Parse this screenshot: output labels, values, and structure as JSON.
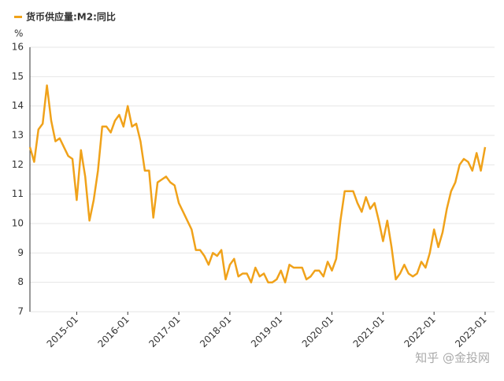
{
  "chart_data": {
    "type": "line",
    "y_label": "%",
    "watermark": "知乎 @金投网",
    "categories": [
      null,
      null,
      null,
      null,
      null,
      null,
      null,
      null,
      null,
      null,
      null,
      "2015-01",
      null,
      null,
      null,
      null,
      null,
      null,
      null,
      null,
      null,
      null,
      null,
      "2016-01",
      null,
      null,
      null,
      null,
      null,
      null,
      null,
      null,
      null,
      null,
      null,
      "2017-01",
      null,
      null,
      null,
      null,
      null,
      null,
      null,
      null,
      null,
      null,
      null,
      "2018-01",
      null,
      null,
      null,
      null,
      null,
      null,
      null,
      null,
      null,
      null,
      null,
      "2019-01",
      null,
      null,
      null,
      null,
      null,
      null,
      null,
      null,
      null,
      null,
      null,
      "2020-01",
      null,
      null,
      null,
      null,
      null,
      null,
      null,
      null,
      null,
      null,
      null,
      "2021-01",
      null,
      null,
      null,
      null,
      null,
      null,
      null,
      null,
      null,
      null,
      null,
      "2022-01",
      null,
      null,
      null,
      null,
      null,
      null,
      null,
      null,
      null,
      null,
      null,
      "2023-01"
    ],
    "series": [
      {
        "name": "货币供应量:M2:同比",
        "color": "#f0a21a",
        "values": [
          12.6,
          12.1,
          13.2,
          13.4,
          14.7,
          13.5,
          12.8,
          12.9,
          12.6,
          12.3,
          12.2,
          10.8,
          12.5,
          11.6,
          10.1,
          10.8,
          11.8,
          13.3,
          13.3,
          13.1,
          13.5,
          13.7,
          13.3,
          14.0,
          13.3,
          13.4,
          12.8,
          11.8,
          11.8,
          10.2,
          11.4,
          11.5,
          11.6,
          11.4,
          11.3,
          10.7,
          10.4,
          10.1,
          9.8,
          9.1,
          9.1,
          8.9,
          8.6,
          9.0,
          8.9,
          9.1,
          8.1,
          8.6,
          8.8,
          8.2,
          8.3,
          8.3,
          8.0,
          8.5,
          8.2,
          8.3,
          8.0,
          8.0,
          8.1,
          8.4,
          8.0,
          8.6,
          8.5,
          8.5,
          8.5,
          8.1,
          8.2,
          8.4,
          8.4,
          8.2,
          8.7,
          8.4,
          8.8,
          10.1,
          11.1,
          11.1,
          11.1,
          10.7,
          10.4,
          10.9,
          10.5,
          10.7,
          10.1,
          9.4,
          10.1,
          9.2,
          8.1,
          8.3,
          8.6,
          8.3,
          8.2,
          8.3,
          8.7,
          8.5,
          9.0,
          9.8,
          9.2,
          9.7,
          10.5,
          11.1,
          11.4,
          12.0,
          12.2,
          12.1,
          11.8,
          12.4,
          11.8,
          12.6
        ]
      }
    ],
    "ylim": [
      7,
      16
    ],
    "yticks": [
      7,
      8,
      9,
      10,
      11,
      12,
      13,
      14,
      15,
      16
    ],
    "grid": true
  }
}
